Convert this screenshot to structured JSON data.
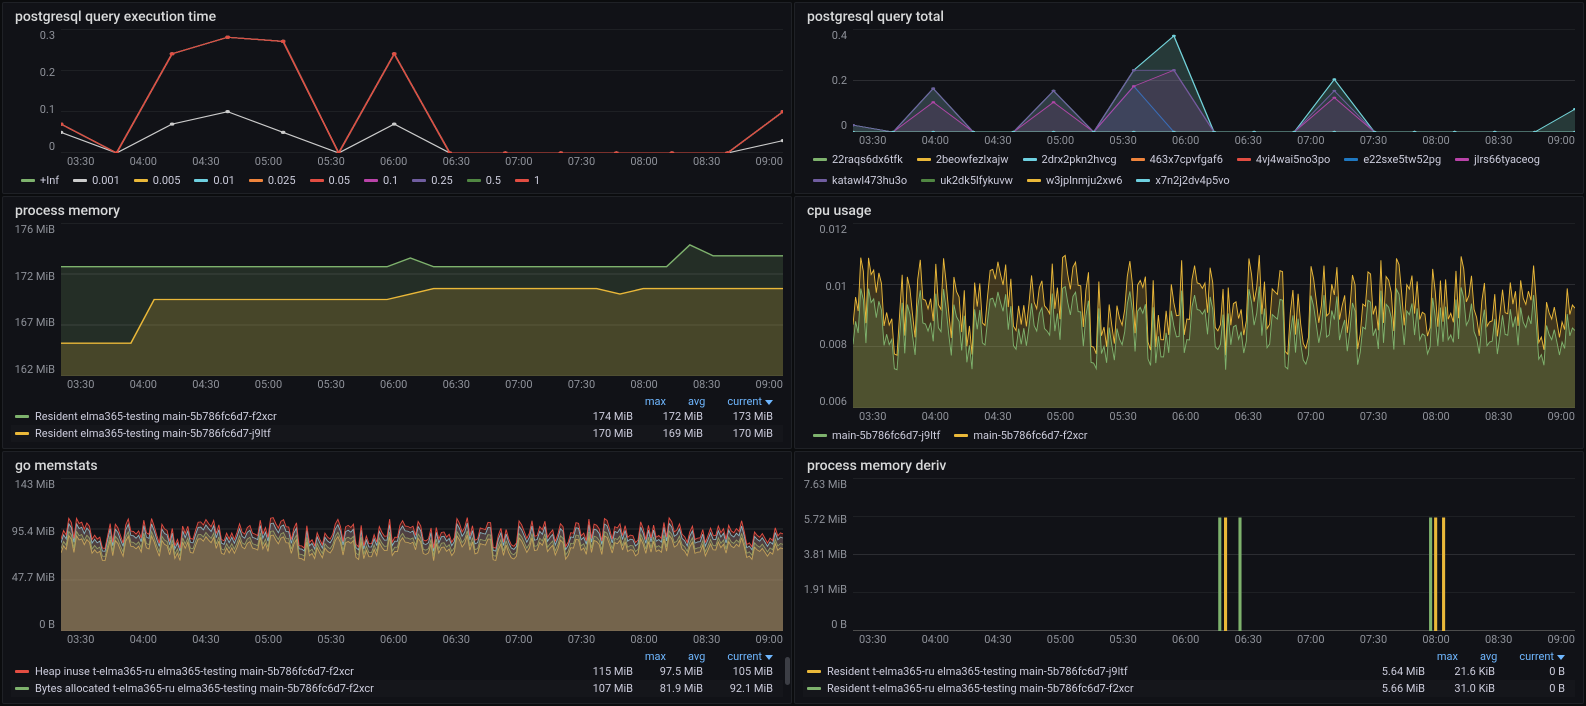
{
  "colors": {
    "bg": "#111217",
    "grid": "#2c2d32",
    "textMuted": "#8e9199",
    "link": "#6fb7ff"
  },
  "xaxis_labels": [
    "03:30",
    "04:00",
    "04:30",
    "05:00",
    "05:30",
    "06:00",
    "06:30",
    "07:00",
    "07:30",
    "08:00",
    "08:30",
    "09:00"
  ],
  "panels": {
    "p1": {
      "title": "postgresql query execution time",
      "type": "line",
      "yticks": [
        "0.3",
        "0.2",
        "0.1",
        "0"
      ],
      "ylim": [
        0,
        0.3
      ],
      "legend_only": true,
      "series": [
        {
          "label": "+Inf",
          "color": "#7eb26d",
          "values": [
            0.07,
            0,
            0.24,
            0.28,
            0.27,
            0,
            0.24,
            0,
            0,
            0,
            0,
            0,
            0,
            0.1
          ]
        },
        {
          "label": "0.001",
          "color": "#cccccc",
          "values": [
            0.05,
            0,
            0.07,
            0.1,
            0.05,
            0,
            0.07,
            0,
            0,
            0,
            0,
            0,
            0,
            0.03
          ]
        },
        {
          "label": "0.005",
          "color": "#eab839",
          "values": [
            0.07,
            0,
            0.24,
            0.28,
            0.27,
            0,
            0.24,
            0,
            0,
            0,
            0,
            0,
            0,
            0.1
          ]
        },
        {
          "label": "0.01",
          "color": "#6ed0e0",
          "values": [
            0.07,
            0,
            0.24,
            0.28,
            0.27,
            0,
            0.24,
            0,
            0,
            0,
            0,
            0,
            0,
            0.1
          ]
        },
        {
          "label": "0.025",
          "color": "#ef843c",
          "values": [
            0.07,
            0,
            0.24,
            0.28,
            0.27,
            0,
            0.24,
            0,
            0,
            0,
            0,
            0,
            0,
            0.1
          ]
        },
        {
          "label": "0.05",
          "color": "#e24d42",
          "values": [
            0.07,
            0,
            0.24,
            0.28,
            0.27,
            0,
            0.24,
            0,
            0,
            0,
            0,
            0,
            0,
            0.1
          ]
        },
        {
          "label": "0.1",
          "color": "#ba43a9",
          "values": [
            0.07,
            0,
            0.24,
            0.28,
            0.27,
            0,
            0.24,
            0,
            0,
            0,
            0,
            0,
            0,
            0.1
          ]
        },
        {
          "label": "0.25",
          "color": "#705da0",
          "values": [
            0.07,
            0,
            0.24,
            0.28,
            0.27,
            0,
            0.24,
            0,
            0,
            0,
            0,
            0,
            0,
            0.1
          ]
        },
        {
          "label": "0.5",
          "color": "#508642",
          "values": [
            0.07,
            0,
            0.24,
            0.28,
            0.27,
            0,
            0.24,
            0,
            0,
            0,
            0,
            0,
            0,
            0.1
          ]
        },
        {
          "label": "1",
          "color": "#e24d42",
          "values": [
            0.07,
            0,
            0.24,
            0.28,
            0.27,
            0,
            0.24,
            0,
            0,
            0,
            0,
            0,
            0,
            0.1
          ]
        }
      ]
    },
    "p2": {
      "title": "postgresql query total",
      "type": "area-line",
      "yticks": [
        "0.4",
        "0.2",
        "0"
      ],
      "ylim": [
        0,
        0.45
      ],
      "legend_only": true,
      "series": [
        {
          "label": "22raqs6dx6tfk",
          "color": "#7eb26d",
          "values": [
            0.03,
            0,
            0.19,
            0,
            0,
            0.18,
            0,
            0.27,
            0.42,
            0,
            0,
            0,
            0.23,
            0,
            0,
            0,
            0,
            0,
            0.1
          ]
        },
        {
          "label": "2beowfezlxajw",
          "color": "#eab839",
          "values": [
            0,
            0,
            0,
            0,
            0,
            0,
            0,
            0,
            0,
            0,
            0,
            0,
            0,
            0,
            0,
            0,
            0,
            0,
            0
          ]
        },
        {
          "label": "2drx2pkn2hvcg",
          "color": "#6ed0e0",
          "values": [
            0.03,
            0,
            0.19,
            0,
            0,
            0.18,
            0,
            0.27,
            0.42,
            0,
            0,
            0,
            0.23,
            0,
            0,
            0,
            0,
            0,
            0.1
          ]
        },
        {
          "label": "463x7cpvfgaf6",
          "color": "#ef843c",
          "values": [
            0,
            0,
            0,
            0,
            0,
            0,
            0,
            0,
            0,
            0,
            0,
            0,
            0,
            0,
            0,
            0,
            0,
            0,
            0
          ]
        },
        {
          "label": "4vj4wai5no3po",
          "color": "#e24d42",
          "values": [
            0,
            0,
            0,
            0,
            0,
            0,
            0,
            0,
            0,
            0,
            0,
            0,
            0,
            0,
            0,
            0,
            0,
            0,
            0
          ]
        },
        {
          "label": "e22sxe5tw52pg",
          "color": "#1f78c1",
          "values": [
            0,
            0,
            0,
            0,
            0,
            0,
            0,
            0.2,
            0,
            0,
            0,
            0,
            0,
            0,
            0,
            0,
            0,
            0,
            0
          ]
        },
        {
          "label": "jlrs66tyaceog",
          "color": "#ba43a9",
          "values": [
            0,
            0,
            0.13,
            0,
            0,
            0.13,
            0,
            0.2,
            0.27,
            0,
            0,
            0,
            0.15,
            0,
            0,
            0,
            0,
            0,
            0
          ]
        },
        {
          "label": "katawl473hu3o",
          "color": "#705da0",
          "values": [
            0.03,
            0,
            0.19,
            0,
            0,
            0.18,
            0,
            0.27,
            0.27,
            0,
            0,
            0,
            0.18,
            0,
            0,
            0,
            0,
            0,
            0
          ]
        },
        {
          "label": "uk2dk5lfykuvw",
          "color": "#508642",
          "values": [
            0,
            0,
            0,
            0,
            0,
            0,
            0,
            0,
            0,
            0,
            0,
            0,
            0,
            0,
            0,
            0,
            0,
            0,
            0
          ]
        },
        {
          "label": "w3jplnmju2xw6",
          "color": "#eab839",
          "values": [
            0,
            0,
            0,
            0,
            0,
            0,
            0,
            0,
            0,
            0,
            0,
            0,
            0,
            0,
            0,
            0,
            0,
            0,
            0
          ]
        },
        {
          "label": "x7n2j2dv4p5vo",
          "color": "#6ed0e0",
          "values": [
            0,
            0,
            0,
            0,
            0,
            0,
            0,
            0,
            0,
            0,
            0,
            0,
            0,
            0,
            0,
            0,
            0,
            0,
            0
          ]
        }
      ]
    },
    "p3": {
      "title": "process memory",
      "type": "area-step",
      "yticks": [
        "176 MiB",
        "172 MiB",
        "167 MiB",
        "162 MiB"
      ],
      "ylim": [
        162,
        176
      ],
      "stats": {
        "cols": [
          "max",
          "avg",
          "current"
        ]
      },
      "series": [
        {
          "label": "Resident elma365-testing main-5b786fc6d7-f2xcr",
          "color": "#7eb26d",
          "values": [
            172,
            172,
            172,
            172,
            172,
            172,
            172,
            172,
            172,
            172,
            172,
            172,
            172,
            172,
            172,
            172.8,
            172,
            172,
            172,
            172,
            172,
            172,
            172,
            172,
            172,
            172,
            172,
            174,
            173,
            173,
            173,
            173
          ],
          "stats": [
            "174 MiB",
            "172 MiB",
            "173 MiB"
          ]
        },
        {
          "label": "Resident elma365-testing main-5b786fc6d7-j9ltf",
          "color": "#eab839",
          "values": [
            165,
            165,
            165,
            165,
            169,
            169,
            169,
            169,
            169,
            169,
            169,
            169,
            169,
            169,
            169,
            169.5,
            170,
            170,
            170,
            170,
            170,
            170,
            170,
            170,
            169.5,
            170,
            170,
            170,
            170,
            170,
            170,
            170
          ],
          "stats": [
            "170 MiB",
            "169 MiB",
            "170 MiB"
          ]
        }
      ]
    },
    "p4": {
      "title": "cpu usage",
      "type": "area-noise",
      "yticks": [
        "0.012",
        "0.01",
        "0.008",
        "0.006"
      ],
      "ylim": [
        0.005,
        0.013
      ],
      "legend_only": true,
      "series": [
        {
          "label": "main-5b786fc6d7-j9ltf",
          "color": "#7eb26d",
          "base": 0.0085,
          "amp": 0.0015
        },
        {
          "label": "main-5b786fc6d7-f2xcr",
          "color": "#eab839",
          "base": 0.0095,
          "amp": 0.0018
        }
      ]
    },
    "p5": {
      "title": "go memstats",
      "type": "area-noise",
      "yticks": [
        "143 MiB",
        "95.4 MiB",
        "47.7 MiB",
        "0 B"
      ],
      "ylim": [
        0,
        143
      ],
      "stats": {
        "cols": [
          "max",
          "avg",
          "current"
        ]
      },
      "scroll": true,
      "series": [
        {
          "label": "Heap inuse t-elma365-ru elma365-testing main-5b786fc6d7-f2xcr",
          "color": "#e24d42",
          "base": 92,
          "amp": 12,
          "stats": [
            "115 MiB",
            "97.5 MiB",
            "105 MiB"
          ]
        },
        {
          "label": "Bytes allocated t-elma365-ru elma365-testing main-5b786fc6d7-f2xcr",
          "color": "#7eb26d",
          "base": 82,
          "amp": 10,
          "stats": [
            "107 MiB",
            "81.9 MiB",
            "92.1 MiB"
          ]
        },
        {
          "label": "_hidden_blue",
          "color": "#6ed0e0",
          "base": 88,
          "amp": 11,
          "hidden": true
        },
        {
          "label": "_hidden_yellow",
          "color": "#eab839",
          "base": 78,
          "amp": 10,
          "hidden": true
        }
      ]
    },
    "p6": {
      "title": "process memory deriv",
      "type": "spike",
      "yticks": [
        "7.63 MiB",
        "5.72 MiB",
        "3.81 MiB",
        "1.91 MiB",
        "0 B"
      ],
      "ylim": [
        0,
        7.63
      ],
      "stats": {
        "cols": [
          "max",
          "avg",
          "current"
        ]
      },
      "series": [
        {
          "label": "Resident t-elma365-ru elma365-testing main-5b786fc6d7-j9ltf",
          "color": "#eab839",
          "spikes": [
            {
              "x": 0.516,
              "h": 5.66
            },
            {
              "x": 0.807,
              "h": 5.66
            },
            {
              "x": 0.818,
              "h": 5.66
            }
          ],
          "stats": [
            "5.64 MiB",
            "21.6 KiB",
            "0 B"
          ]
        },
        {
          "label": "Resident t-elma365-ru elma365-testing main-5b786fc6d7-f2xcr",
          "color": "#7eb26d",
          "spikes": [
            {
              "x": 0.508,
              "h": 5.66
            },
            {
              "x": 0.536,
              "h": 5.66
            },
            {
              "x": 0.8,
              "h": 5.66
            }
          ],
          "stats": [
            "5.66 MiB",
            "31.0 KiB",
            "0 B"
          ]
        }
      ]
    }
  }
}
